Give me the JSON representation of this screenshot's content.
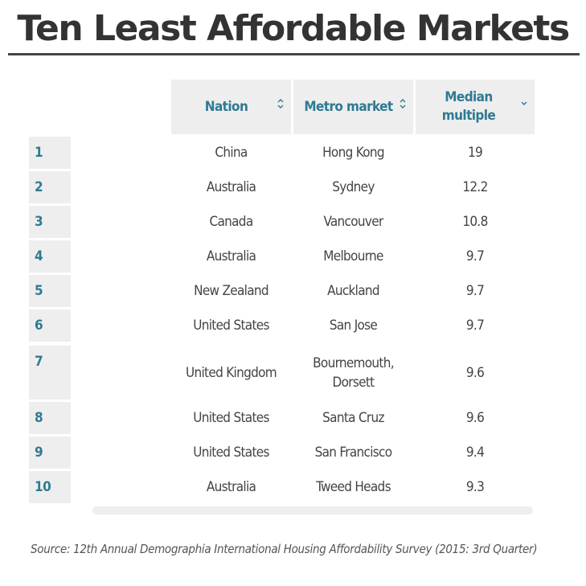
{
  "title": "Ten Least Affordable Markets",
  "table": {
    "headers": {
      "nation": "Nation",
      "metro": "Metro market",
      "median": "Median multiple",
      "nation_sort_icon": "⌃⌄",
      "metro_sort_icon": "⌃⌄",
      "median_sort_icon": "⌄"
    },
    "rows": [
      {
        "rank": "1",
        "nation": "China",
        "metro": "Hong Kong",
        "median": "19"
      },
      {
        "rank": "2",
        "nation": "Australia",
        "metro": "Sydney",
        "median": "12.2"
      },
      {
        "rank": "3",
        "nation": "Canada",
        "metro": "Vancouver",
        "median": "10.8"
      },
      {
        "rank": "4",
        "nation": "Australia",
        "metro": "Melbourne",
        "median": "9.7"
      },
      {
        "rank": "5",
        "nation": "New Zealand",
        "metro": "Auckland",
        "median": "9.7"
      },
      {
        "rank": "6",
        "nation": "United States",
        "metro": "San Jose",
        "median": "9.7"
      },
      {
        "rank": "7",
        "nation": "United Kingdom",
        "metro": "Bournemouth, Dorsett",
        "median": "9.6"
      },
      {
        "rank": "8",
        "nation": "United States",
        "metro": "Santa Cruz",
        "median": "9.6"
      },
      {
        "rank": "9",
        "nation": "United States",
        "metro": "San Francisco",
        "median": "9.4"
      },
      {
        "rank": "10",
        "nation": "Australia",
        "metro": "Tweed Heads",
        "median": "9.3"
      }
    ]
  },
  "source": "Source: 12th Annual Demographia International Housing Affordability Survey (2015: 3rd Quarter)",
  "colors": {
    "accent": "#2f7a93",
    "header_bg": "#eeeeee",
    "text": "#444444"
  }
}
